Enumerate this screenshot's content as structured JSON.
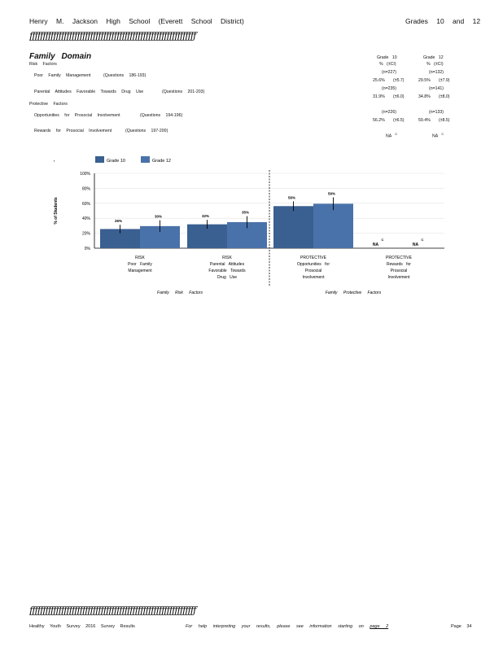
{
  "header": {
    "school": "Henry M. Jackson High School (Everett School District)",
    "grades": "Grades 10 and 12"
  },
  "rule_text": "ƒƒƒƒƒƒƒƒƒƒƒƒƒƒƒƒƒƒƒƒƒƒƒƒƒƒƒƒƒƒƒƒƒƒƒƒƒƒƒƒƒƒƒƒƒƒƒƒƒƒƒƒƒƒƒƒƒƒƒƒƒƒƒ",
  "domain_title": "Family Domain",
  "risk_heading": "Risk Factors",
  "protective_heading": "Protective Factors",
  "columns": {
    "g10": {
      "label": "Grade 10",
      "sub": "% (±CI)"
    },
    "g12": {
      "label": "Grade 12",
      "sub": "% (±CI)"
    }
  },
  "rows": [
    {
      "label": "Poor Family Management",
      "questions": "(Questions 186-193)",
      "g10_n": "(n=227)",
      "g12_n": "(n=132)",
      "g10_pct": "25.6%",
      "g10_ci": "(±5.7)",
      "g12_pct": "29.5%",
      "g12_ci": "(±7.9)"
    },
    {
      "label": "Parental Attitudes Favorable Towards Drug Use",
      "questions": "(Questions 201-203)",
      "g10_n": "(n=235)",
      "g12_n": "(n=141)",
      "g10_pct": "31.9%",
      "g10_ci": "(±6.0)",
      "g12_pct": "34.8%",
      "g12_ci": "(±8.0)"
    },
    {
      "label": "Opportunities for Prosocial Involvement",
      "questions": "(Questions 194-196)",
      "g10_n": "(n=226)",
      "g12_n": "(n=133)",
      "g10_pct": "56.2%",
      "g10_ci": "(±6.5)",
      "g12_pct": "59.4%",
      "g12_ci": "(±8.5)"
    },
    {
      "label": "Rewards for Prosocial Involvement",
      "questions": "(Questions 197-200)",
      "g10_na": "NA",
      "g12_na": "NA",
      "na_mark": "C"
    }
  ],
  "chart_data": {
    "type": "bar",
    "ylabel": "% of Students",
    "yticks": [
      "0%",
      "20%",
      "40%",
      "60%",
      "80%",
      "100%"
    ],
    "ylim": [
      0,
      100
    ],
    "legend": [
      "Grade 10",
      "Grade 12"
    ],
    "colors": {
      "g10": "#3a5f91",
      "g12": "#4a72aa"
    },
    "categories": [
      {
        "lines": [
          "RISK",
          "Poor Family",
          "Management"
        ]
      },
      {
        "lines": [
          "RISK",
          "Parental Attitudes",
          "Favorable Towards",
          "Drug Use"
        ]
      },
      {
        "lines": [
          "PROTECTIVE",
          "Opportunities for",
          "Prosocial",
          "Involvement"
        ]
      },
      {
        "lines": [
          "PROTECTIVE",
          "Rewards for",
          "Prosocial",
          "Involvement"
        ]
      }
    ],
    "series": [
      {
        "name": "Grade 10",
        "values": [
          25.6,
          31.9,
          56.2,
          null
        ],
        "ci": [
          5.7,
          6.0,
          6.5,
          null
        ],
        "labels": [
          "26%",
          "32%",
          "56%",
          "NA"
        ]
      },
      {
        "name": "Grade 12",
        "values": [
          29.5,
          34.8,
          59.4,
          null
        ],
        "ci": [
          7.9,
          8.0,
          8.5,
          null
        ],
        "labels": [
          "30%",
          "35%",
          "59%",
          "NA"
        ]
      }
    ],
    "na_mark": "C",
    "group_labels": [
      "Family Risk Factors",
      "Family Protective Factors"
    ]
  },
  "footer": {
    "left": "Healthy Youth Survey 2016 Survey Results",
    "center_prefix": "For help interpreting your results, please see information starting on",
    "center_link": "page 2",
    "right": "Page 34"
  }
}
